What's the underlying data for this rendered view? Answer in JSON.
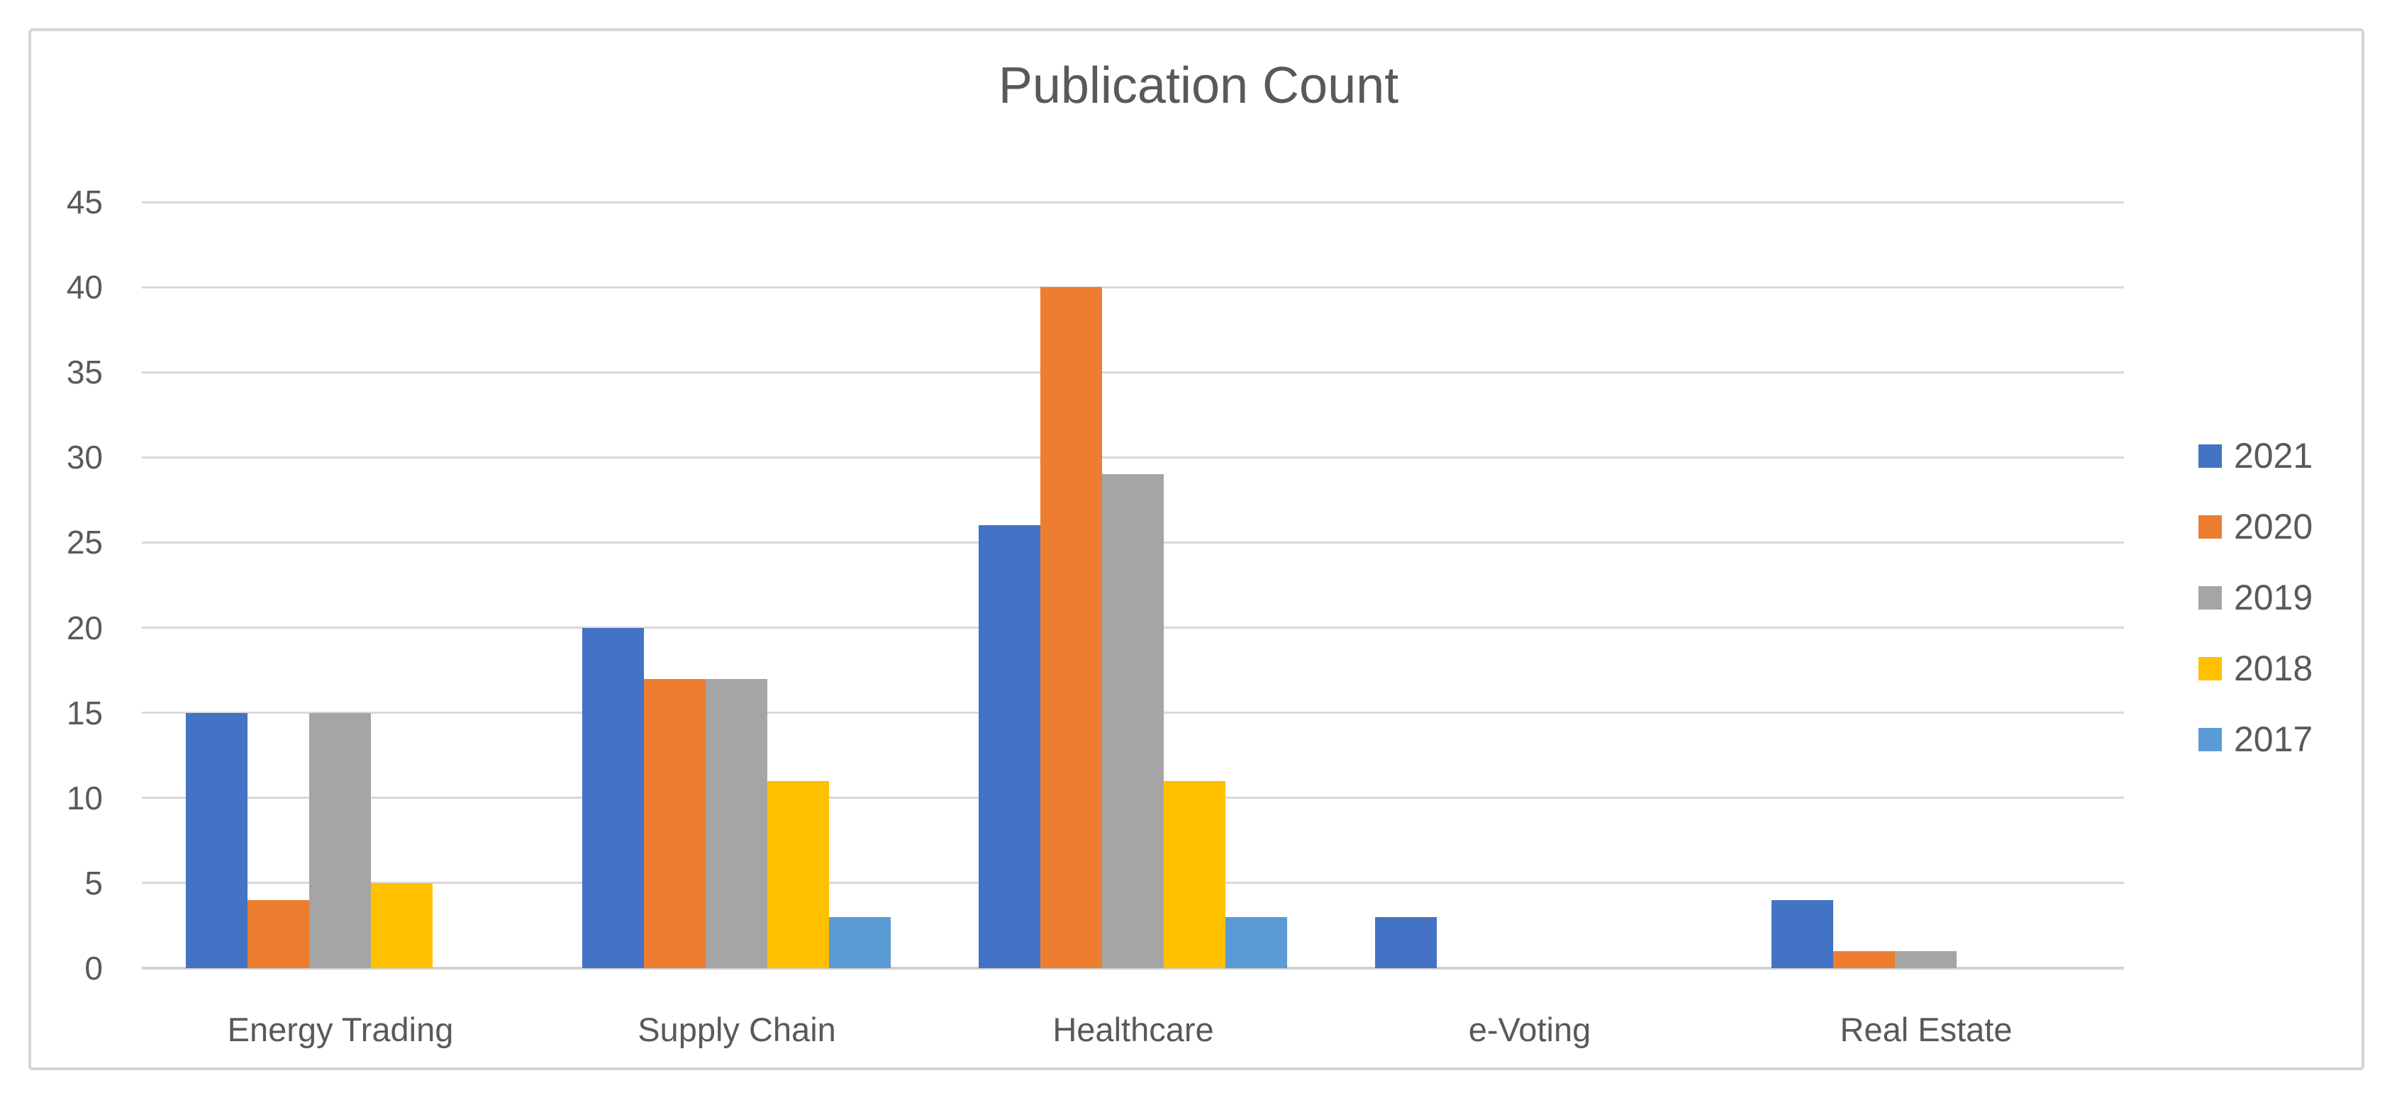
{
  "chart_data": {
    "type": "bar",
    "title": "Publication Count",
    "categories": [
      "Energy Trading",
      "Supply Chain",
      "Healthcare",
      "e-Voting",
      "Real Estate"
    ],
    "series": [
      {
        "name": "2021",
        "color": "#4472C4",
        "values": [
          15,
          20,
          26,
          3,
          4
        ]
      },
      {
        "name": "2020",
        "color": "#ED7D31",
        "values": [
          4,
          17,
          40,
          0,
          1
        ]
      },
      {
        "name": "2019",
        "color": "#A5A5A5",
        "values": [
          15,
          17,
          29,
          0,
          1
        ]
      },
      {
        "name": "2018",
        "color": "#FFC000",
        "values": [
          5,
          11,
          11,
          0,
          0
        ]
      },
      {
        "name": "2017",
        "color": "#5B9BD5",
        "values": [
          0,
          3,
          3,
          0,
          0
        ]
      }
    ],
    "xlabel": "",
    "ylabel": "",
    "ylim": [
      0,
      45
    ],
    "ytick_step": 5,
    "ytick_labels": [
      "0",
      "5",
      "10",
      "15",
      "20",
      "25",
      "30",
      "35",
      "40",
      "45"
    ],
    "grid": true,
    "legend_position": "right",
    "legend_entries": [
      "2021",
      "2020",
      "2019",
      "2018",
      "2017"
    ],
    "colors": {
      "grid": "#D9D9D9",
      "axis_line": "#D2D2D2",
      "text": "#595959",
      "background": "#FFFFFF",
      "frame_border": "#D5D5D5"
    }
  }
}
